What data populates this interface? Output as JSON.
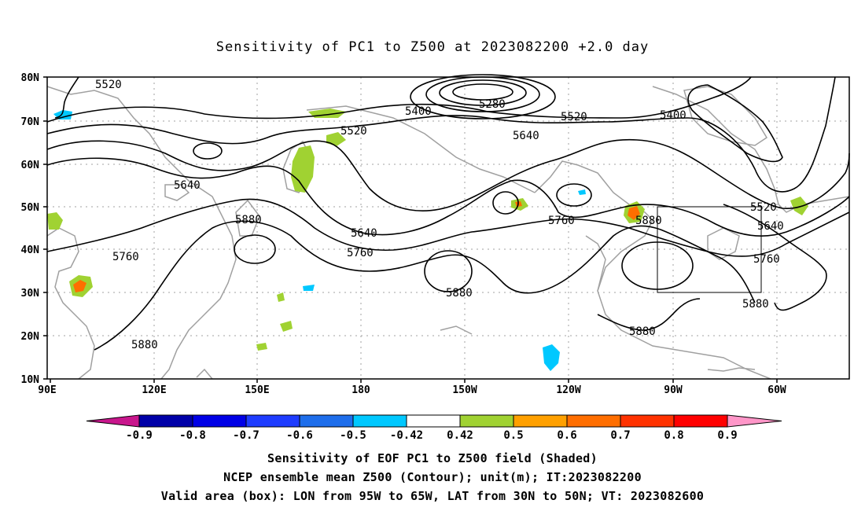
{
  "title": "Sensitivity of PC1 to Z500 at 2023082200 +2.0 day",
  "map": {
    "lon_labels": [
      "90E",
      "120E",
      "150E",
      "180",
      "150W",
      "120W",
      "90W",
      "60W"
    ],
    "lat_labels": [
      "80N",
      "70N",
      "60N",
      "50N",
      "40N",
      "30N",
      "20N",
      "10N"
    ],
    "contour_labels": [
      {
        "text": "5520"
      },
      {
        "text": "5400"
      },
      {
        "text": "5280"
      },
      {
        "text": "5520"
      },
      {
        "text": "5400"
      },
      {
        "text": "5520"
      },
      {
        "text": "5640"
      },
      {
        "text": "5640"
      },
      {
        "text": "5880"
      },
      {
        "text": "5760"
      },
      {
        "text": "5640"
      },
      {
        "text": "5760"
      },
      {
        "text": "5760"
      },
      {
        "text": "5880"
      },
      {
        "text": "5520"
      },
      {
        "text": "5640"
      },
      {
        "text": "5760"
      },
      {
        "text": "5880"
      },
      {
        "text": "5880"
      },
      {
        "text": "5880"
      },
      {
        "text": "5880"
      }
    ],
    "box": {
      "lon_from": "95W",
      "lon_to": "65W",
      "lat_from": "30N",
      "lat_to": "50N"
    }
  },
  "colorbar": {
    "labels": [
      "-0.9",
      "-0.8",
      "-0.7",
      "-0.6",
      "-0.5",
      "-0.42",
      "0.42",
      "0.5",
      "0.6",
      "0.7",
      "0.8",
      "0.9"
    ],
    "colors": {
      "low_tip": "#c8168c",
      "b1": "#0000a8",
      "b2": "#0000e6",
      "b3": "#1e3cff",
      "b4": "#1e6eeb",
      "b5": "#00c8ff",
      "neutral": "#ffffff",
      "p1": "#a0d232",
      "p2": "#ffa000",
      "p3": "#ff6e00",
      "p4": "#ff3200",
      "p5": "#ff0000",
      "high_tip": "#ff96c8"
    }
  },
  "captions": {
    "line1": "Sensitivity of EOF PC1 to Z500 field (Shaded)",
    "line2": "NCEP ensemble mean Z500 (Contour); unit(m); IT:2023082200",
    "line3": "Valid area (box): LON from 95W to 65W, LAT from 30N to 50N; VT: 2023082600"
  }
}
